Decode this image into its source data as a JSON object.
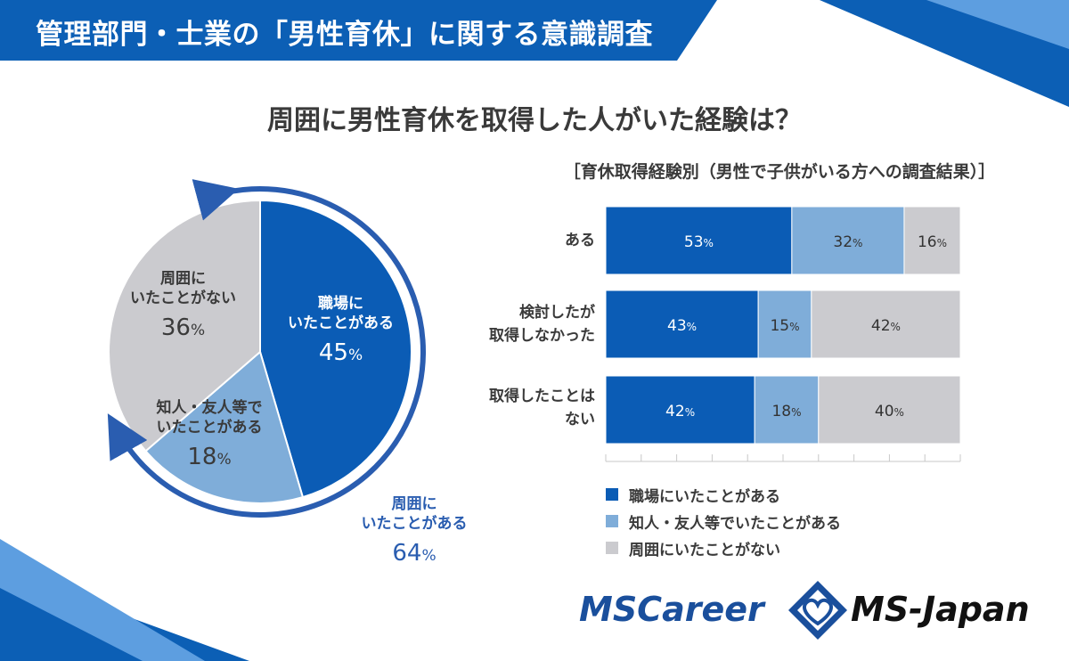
{
  "header": {
    "title": "管理部門・士業の「男性育休」に関する意識調査"
  },
  "colors": {
    "work": "#0b5cb5",
    "friend": "#7fadd9",
    "none": "#cbcbcf",
    "banner": "#0c5fb5",
    "accent": "#2a5db0"
  },
  "chart_data": [
    {
      "type": "pie",
      "title": "周囲に男性育休を取得した人がいた経験は？",
      "slices": [
        {
          "label": "職場に\nいたことがある",
          "value": 45,
          "percent_text": "45"
        },
        {
          "label": "知人・友人等で\nいたことがある",
          "value": 18,
          "percent_text": "18"
        },
        {
          "label": "周囲に\nいたことがない",
          "value": 36,
          "percent_text": "36"
        }
      ],
      "annotation": {
        "label": "周囲に\nいたことがある",
        "value": 64,
        "percent_text": "64"
      },
      "unit": "%"
    },
    {
      "type": "bar",
      "orientation": "horizontal",
      "stacked": true,
      "subtitle": "［育休取得経験別（男性で子供がいる方への調査結果）］",
      "categories": [
        "ある",
        "検討したが\n取得しなかった",
        "取得したことは\nない"
      ],
      "series": [
        {
          "name": "職場にいたことがある",
          "values": [
            53,
            43,
            42
          ]
        },
        {
          "name": "知人・友人等でいたことがある",
          "values": [
            32,
            15,
            18
          ]
        },
        {
          "name": "周囲にいたことがない",
          "values": [
            16,
            42,
            40
          ]
        }
      ],
      "unit": "%",
      "xlim": [
        0,
        100
      ],
      "grid": false,
      "legend": "bottom"
    }
  ],
  "logo": {
    "left": "MSCareer",
    "right": "MS-Japan"
  }
}
